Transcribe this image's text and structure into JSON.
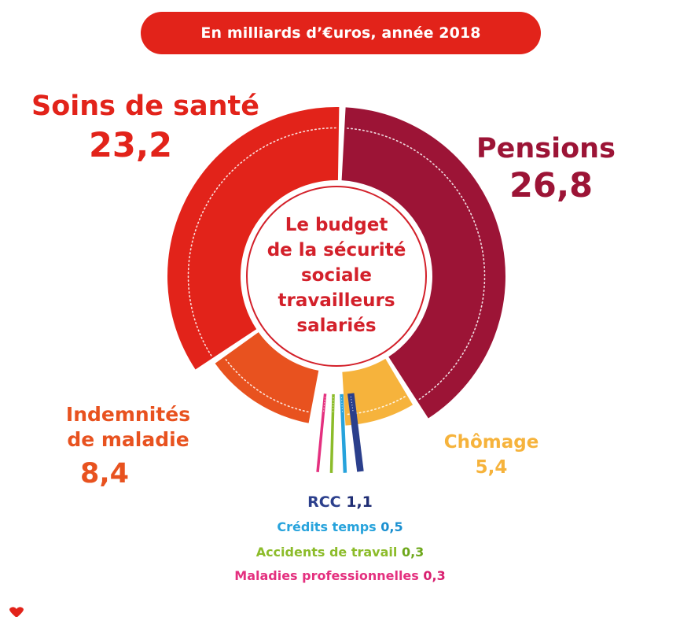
{
  "header": {
    "subtitle": "En milliards d’€uros, année 2018"
  },
  "center_title_lines": [
    "Le budget",
    "de la sécurité",
    "sociale",
    "travailleurs",
    "salariés"
  ],
  "labels": {
    "soins": {
      "name": "Soins de santé",
      "value": "23,2"
    },
    "pensions": {
      "name": "Pensions",
      "value": "26,8"
    },
    "indemnites": {
      "line1": "Indemnités",
      "line2": "de maladie",
      "value": "8,4"
    },
    "chomage": {
      "name": "Chômage",
      "value": "5,4"
    },
    "rcc": {
      "name": "RCC",
      "value": "1,1"
    },
    "credits": {
      "name": "Crédits temps",
      "value": "0,5"
    },
    "accidents": {
      "name": "Accidents de travail",
      "value": "0,3"
    },
    "maladies": {
      "name": "Maladies professionnelles",
      "value": "0,3"
    }
  },
  "colors": {
    "soins": "#e2231a",
    "pensions": "#9c1436",
    "indemnites": "#e8521f",
    "chomage": "#f6b33c",
    "rcc": "#2b3f8c",
    "credits": "#27a3dc",
    "accidents": "#8cbc2a",
    "maladies": "#e4307f",
    "header_bg": "#e2231a"
  },
  "chart_data": {
    "type": "pie",
    "unit": "milliards d’€uros",
    "slices": [
      {
        "name": "Pensions",
        "value": 26.8
      },
      {
        "name": "Chômage",
        "value": 5.4
      },
      {
        "name": "RCC",
        "value": 1.1
      },
      {
        "name": "Crédits temps",
        "value": 0.5
      },
      {
        "name": "Accidents de travail",
        "value": 0.3
      },
      {
        "name": "Maladies professionnelles",
        "value": 0.3
      },
      {
        "name": "Indemnités de maladie",
        "value": 8.4
      },
      {
        "name": "Soins de santé",
        "value": 23.2
      }
    ]
  }
}
